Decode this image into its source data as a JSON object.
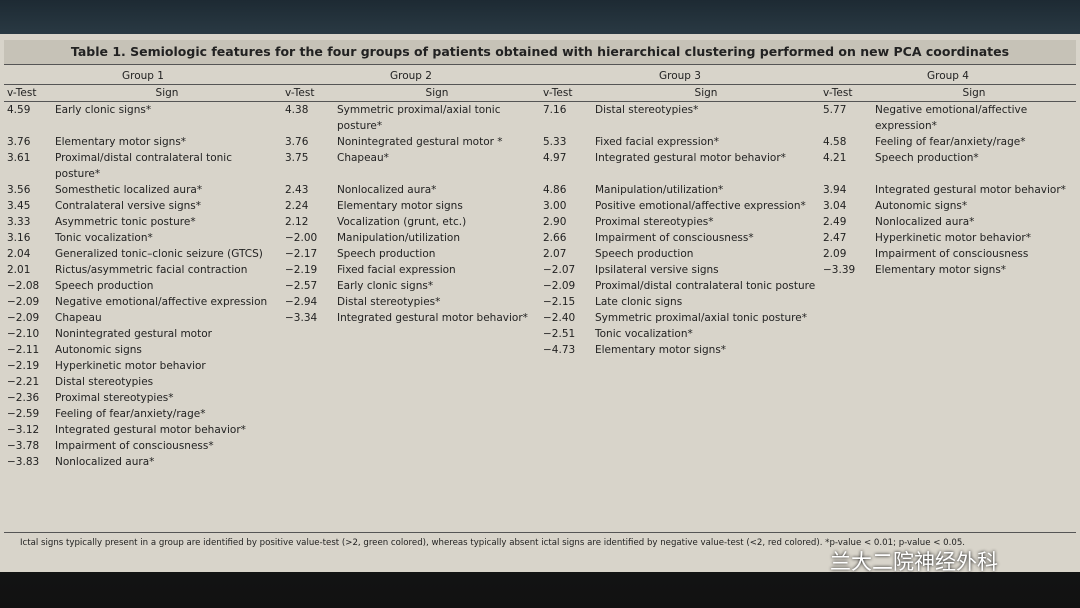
{
  "table": {
    "title": "Table 1. Semiologic features for the four groups of patients obtained with hierarchical clustering performed on new PCA coordinates",
    "columns": [
      "v-Test",
      "Sign"
    ],
    "groups": [
      {
        "name": "Group 1",
        "rows": [
          {
            "v": "4.59",
            "sign": "Early clonic signs*"
          },
          {
            "v": "3.76",
            "sign": "Elementary motor signs*"
          },
          {
            "v": "3.61",
            "sign": "Proximal/distal contralateral tonic posture*"
          },
          {
            "v": "3.56",
            "sign": "Somesthetic localized aura*"
          },
          {
            "v": "3.45",
            "sign": "Contralateral versive signs*"
          },
          {
            "v": "3.33",
            "sign": "Asymmetric tonic posture*"
          },
          {
            "v": "3.16",
            "sign": "Tonic vocalization*"
          },
          {
            "v": "2.04",
            "sign": "Generalized tonic–clonic seizure (GTCS)"
          },
          {
            "v": "2.01",
            "sign": "Rictus/asymmetric facial contraction"
          },
          {
            "v": "−2.08",
            "sign": "Speech production"
          },
          {
            "v": "−2.09",
            "sign": "Negative emotional/affective expression"
          },
          {
            "v": "−2.09",
            "sign": "Chapeau"
          },
          {
            "v": "−2.10",
            "sign": "Nonintegrated gestural motor"
          },
          {
            "v": "−2.11",
            "sign": "Autonomic signs"
          },
          {
            "v": "−2.19",
            "sign": "Hyperkinetic motor behavior"
          },
          {
            "v": "−2.21",
            "sign": "Distal stereotypies"
          },
          {
            "v": "−2.36",
            "sign": "Proximal stereotypies*"
          },
          {
            "v": "−2.59",
            "sign": "Feeling of fear/anxiety/rage*"
          },
          {
            "v": "−3.12",
            "sign": "Integrated gestural motor behavior*"
          },
          {
            "v": "−3.78",
            "sign": "Impairment of consciousness*"
          },
          {
            "v": "−3.83",
            "sign": "Nonlocalized aura*"
          }
        ]
      },
      {
        "name": "Group 2",
        "rows": [
          {
            "v": "4.38",
            "sign": "Symmetric proximal/axial tonic posture*"
          },
          {
            "v": "3.76",
            "sign": "Nonintegrated gestural motor *"
          },
          {
            "v": "3.75",
            "sign": "Chapeau*"
          },
          {
            "v": "2.43",
            "sign": "Nonlocalized aura*"
          },
          {
            "v": "2.24",
            "sign": "Elementary motor signs"
          },
          {
            "v": "2.12",
            "sign": "Vocalization (grunt, etc.)"
          },
          {
            "v": "−2.00",
            "sign": "Manipulation/utilization"
          },
          {
            "v": "−2.17",
            "sign": "Speech production"
          },
          {
            "v": "−2.19",
            "sign": "Fixed facial expression"
          },
          {
            "v": "−2.57",
            "sign": "Early clonic signs*"
          },
          {
            "v": "−2.94",
            "sign": "Distal stereotypies*"
          },
          {
            "v": "−3.34",
            "sign": "Integrated gestural motor behavior*"
          }
        ]
      },
      {
        "name": "Group 3",
        "rows": [
          {
            "v": "7.16",
            "sign": "Distal stereotypies*"
          },
          {
            "v": "5.33",
            "sign": "Fixed facial expression*"
          },
          {
            "v": "4.97",
            "sign": "Integrated gestural motor behavior*"
          },
          {
            "v": "4.86",
            "sign": "Manipulation/utilization*"
          },
          {
            "v": "3.00",
            "sign": "Positive emotional/affective expression*"
          },
          {
            "v": "2.90",
            "sign": "Proximal stereotypies*"
          },
          {
            "v": "2.66",
            "sign": "Impairment of consciousness*"
          },
          {
            "v": "2.07",
            "sign": "Speech production"
          },
          {
            "v": "−2.07",
            "sign": "Ipsilateral versive signs"
          },
          {
            "v": "−2.09",
            "sign": "Proximal/distal contralateral tonic posture"
          },
          {
            "v": "−2.15",
            "sign": "Late clonic signs"
          },
          {
            "v": "−2.40",
            "sign": "Symmetric proximal/axial tonic posture*"
          },
          {
            "v": "−2.51",
            "sign": "Tonic vocalization*"
          },
          {
            "v": "−4.73",
            "sign": "Elementary motor signs*"
          }
        ]
      },
      {
        "name": "Group 4",
        "rows": [
          {
            "v": "5.77",
            "sign": "Negative emotional/affective expression*"
          },
          {
            "v": "4.58",
            "sign": "Feeling of fear/anxiety/rage*"
          },
          {
            "v": "4.21",
            "sign": "Speech production*"
          },
          {
            "v": "3.94",
            "sign": "Integrated gestural motor behavior*"
          },
          {
            "v": "3.04",
            "sign": "Autonomic signs*"
          },
          {
            "v": "2.49",
            "sign": "Nonlocalized aura*"
          },
          {
            "v": "2.47",
            "sign": "Hyperkinetic motor behavior*"
          },
          {
            "v": "2.09",
            "sign": "Impairment of consciousness"
          },
          {
            "v": "−3.39",
            "sign": "Elementary motor signs*"
          }
        ]
      }
    ],
    "footnote": "Ictal signs typically present in a group are identified by positive value-test (>2, green colored), whereas typically absent ictal signs are identified by negative value-test (<2, red colored). *p-value < 0.01; p-value < 0.05."
  },
  "watermark": "兰大二院神经外科"
}
